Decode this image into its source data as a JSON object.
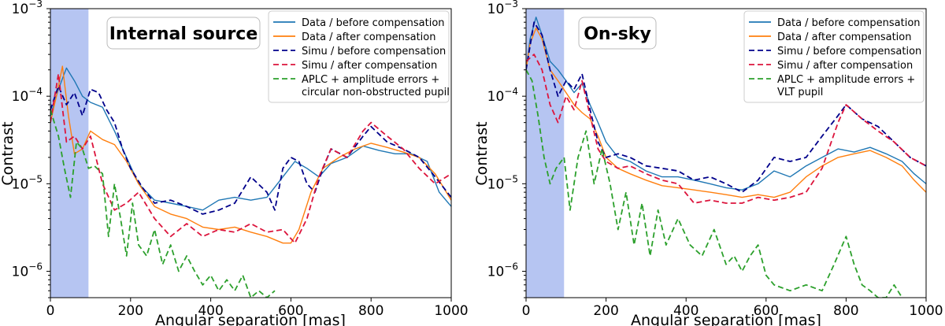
{
  "chart_data": [
    {
      "type": "line",
      "title": "Internal source",
      "xlabel": "Angular separation [mas]",
      "ylabel": "Contrast",
      "xlim": [
        0,
        1000
      ],
      "ylim": [
        5e-07,
        0.001
      ],
      "yscale": "log",
      "xticks": [
        "0",
        "200",
        "400",
        "600",
        "800",
        "1000"
      ],
      "yticks": [
        "10^-6",
        "10^-5",
        "10^-4",
        "10^-3"
      ],
      "shaded_region": [
        0,
        95
      ],
      "legend_position": "top-right",
      "series": [
        {
          "name": "Data / before compensation",
          "color": "#1f77b4",
          "dash": "solid",
          "x": [
            0,
            20,
            40,
            60,
            80,
            100,
            130,
            160,
            190,
            220,
            260,
            300,
            340,
            380,
            420,
            460,
            500,
            540,
            580,
            610,
            640,
            670,
            700,
            740,
            780,
            820,
            860,
            900,
            940,
            970,
            1000
          ],
          "y": [
            6e-05,
            0.00012,
            0.00021,
            0.00015,
            0.0001,
            8.5e-05,
            7.5e-05,
            4e-05,
            2e-05,
            1e-05,
            6.5e-06,
            6e-06,
            5.5e-06,
            5e-06,
            6.5e-06,
            7e-06,
            6.5e-06,
            7e-06,
            1.2e-05,
            1.8e-05,
            1.5e-05,
            1.2e-05,
            1.7e-05,
            2e-05,
            2.7e-05,
            2.4e-05,
            2.2e-05,
            2.2e-05,
            1.8e-05,
            8e-06,
            5.5e-06
          ]
        },
        {
          "name": "Data / after compensation",
          "color": "#ff7f0e",
          "dash": "solid",
          "x": [
            0,
            15,
            30,
            45,
            60,
            80,
            100,
            130,
            160,
            190,
            220,
            260,
            300,
            340,
            380,
            420,
            460,
            500,
            540,
            580,
            600,
            620,
            650,
            680,
            720,
            760,
            800,
            840,
            880,
            920,
            960,
            1000
          ],
          "y": [
            5e-05,
            0.0001,
            0.00022,
            6e-05,
            2.2e-05,
            2.5e-05,
            4e-05,
            3.2e-05,
            2.8e-05,
            1.8e-05,
            1e-05,
            5.5e-06,
            4.5e-06,
            4e-06,
            3.2e-06,
            3e-06,
            3.2e-06,
            2.8e-06,
            2.5e-06,
            2.1e-06,
            2.1e-06,
            3e-06,
            8e-06,
            1.5e-05,
            2e-05,
            2.5e-05,
            2.9e-05,
            2.6e-05,
            2.3e-05,
            2e-05,
            1.3e-05,
            6.5e-06
          ]
        },
        {
          "name": "Simu / before compensation",
          "color": "#00008b",
          "dash": "dashed",
          "x": [
            0,
            20,
            40,
            60,
            80,
            100,
            120,
            140,
            160,
            180,
            200,
            230,
            260,
            300,
            340,
            380,
            420,
            460,
            500,
            540,
            560,
            580,
            600,
            620,
            640,
            660,
            680,
            700,
            740,
            780,
            800,
            840,
            880,
            920,
            960,
            1000
          ],
          "y": [
            7e-05,
            0.00013,
            8e-05,
            0.00011,
            6e-05,
            0.00012,
            0.00011,
            7e-05,
            5e-05,
            2.5e-05,
            1.5e-05,
            9e-06,
            6e-06,
            6.5e-06,
            5.5e-06,
            4.5e-06,
            5e-06,
            6e-06,
            1.2e-05,
            8e-06,
            5e-06,
            1.5e-05,
            2e-05,
            1.8e-05,
            1e-05,
            8e-06,
            1.5e-05,
            2.5e-05,
            2e-05,
            3.5e-05,
            4.5e-05,
            3e-05,
            2.5e-05,
            2e-05,
            1.2e-05,
            7e-06
          ]
        },
        {
          "name": "Simu / after compensation",
          "color": "#dc143c",
          "dash": "dashed",
          "x": [
            0,
            20,
            40,
            60,
            80,
            100,
            130,
            160,
            190,
            220,
            260,
            300,
            340,
            380,
            420,
            460,
            500,
            540,
            580,
            610,
            640,
            670,
            700,
            740,
            780,
            800,
            840,
            880,
            920,
            960,
            1000
          ],
          "y": [
            5e-05,
            0.00018,
            3e-05,
            3.5e-05,
            2.5e-05,
            3.5e-05,
            1e-05,
            5e-06,
            6e-06,
            8e-06,
            4e-06,
            2.5e-06,
            3.5e-06,
            2.5e-06,
            3e-06,
            2.8e-06,
            3.5e-06,
            2.8e-06,
            3e-06,
            2.1e-06,
            4e-06,
            1.2e-05,
            2.5e-05,
            2e-05,
            4e-05,
            5e-05,
            3.5e-05,
            2.5e-05,
            1.5e-05,
            1e-05,
            1.3e-05
          ]
        },
        {
          "name": "APLC + amplitude errors + circular non-obstructed pupil",
          "color": "#2ca02c",
          "dash": "dashed",
          "x": [
            0,
            20,
            35,
            50,
            65,
            80,
            95,
            110,
            130,
            145,
            160,
            175,
            190,
            205,
            220,
            240,
            260,
            280,
            300,
            320,
            340,
            360,
            380,
            400,
            420,
            440,
            460,
            480,
            500,
            520,
            540,
            560
          ],
          "y": [
            7e-05,
            3.5e-05,
            1.5e-05,
            7e-06,
            3e-05,
            2.5e-05,
            1.5e-05,
            1.6e-05,
            1.3e-05,
            2.5e-06,
            1e-05,
            4e-06,
            1.5e-06,
            6e-06,
            2e-06,
            1.5e-06,
            3e-06,
            1.2e-06,
            2e-06,
            1e-06,
            1.5e-06,
            1e-06,
            7e-07,
            9e-07,
            6e-07,
            8e-07,
            6e-07,
            9e-07,
            5e-07,
            6e-07,
            5e-07,
            6e-07
          ]
        }
      ]
    },
    {
      "type": "line",
      "title": "On-sky",
      "xlabel": "Angular separation [mas]",
      "ylabel": "Contrast",
      "xlim": [
        0,
        1000
      ],
      "ylim": [
        5e-07,
        0.001
      ],
      "yscale": "log",
      "xticks": [
        "0",
        "200",
        "400",
        "600",
        "800",
        "1000"
      ],
      "yticks": [
        "10^-6",
        "10^-5",
        "10^-4",
        "10^-3"
      ],
      "shaded_region": [
        0,
        95
      ],
      "legend_position": "top-right",
      "series": [
        {
          "name": "Data / before compensation",
          "color": "#1f77b4",
          "dash": "solid",
          "x": [
            0,
            10,
            25,
            40,
            60,
            80,
            100,
            120,
            140,
            160,
            180,
            200,
            230,
            260,
            300,
            340,
            380,
            420,
            460,
            500,
            540,
            580,
            620,
            660,
            700,
            740,
            780,
            820,
            860,
            900,
            940,
            970,
            1000
          ],
          "y": [
            0.0002,
            0.00045,
            0.0008,
            0.0005,
            0.00025,
            0.0002,
            0.00015,
            0.00011,
            0.00014,
            8e-05,
            5e-05,
            3e-05,
            2e-05,
            1.8e-05,
            1.4e-05,
            1.2e-05,
            1.2e-05,
            1.1e-05,
            1e-05,
            9e-06,
            8.5e-06,
            1e-05,
            1.4e-05,
            1.2e-05,
            1.6e-05,
            2e-05,
            2.5e-05,
            2.3e-05,
            2.6e-05,
            2.2e-05,
            1.8e-05,
            1.3e-05,
            1e-05
          ]
        },
        {
          "name": "Data / after compensation",
          "color": "#ff7f0e",
          "dash": "solid",
          "x": [
            0,
            10,
            25,
            40,
            60,
            80,
            100,
            120,
            140,
            160,
            180,
            200,
            230,
            260,
            300,
            340,
            380,
            420,
            460,
            500,
            540,
            580,
            620,
            660,
            700,
            740,
            780,
            820,
            860,
            900,
            940,
            970,
            1000
          ],
          "y": [
            0.0002,
            0.0004,
            0.0006,
            0.00045,
            0.0002,
            0.00015,
            0.00011,
            8e-05,
            6.5e-05,
            5.5e-05,
            3.5e-05,
            2e-05,
            1.5e-05,
            1.3e-05,
            1.1e-05,
            9.5e-06,
            9e-06,
            8.5e-06,
            8e-06,
            7.5e-06,
            7e-06,
            7.5e-06,
            7e-06,
            8e-06,
            1.2e-05,
            1.6e-05,
            2e-05,
            2.2e-05,
            2.4e-05,
            2e-05,
            1.6e-05,
            1.1e-05,
            8e-06
          ]
        },
        {
          "name": "Simu / before compensation",
          "color": "#00008b",
          "dash": "dashed",
          "x": [
            0,
            20,
            40,
            60,
            80,
            100,
            120,
            140,
            160,
            180,
            200,
            230,
            260,
            300,
            340,
            380,
            420,
            460,
            500,
            540,
            580,
            620,
            660,
            700,
            740,
            780,
            800,
            840,
            880,
            920,
            960,
            1000
          ],
          "y": [
            0.0002,
            0.0007,
            0.0005,
            0.0002,
            0.0001,
            0.00015,
            0.00012,
            0.00018,
            7e-05,
            3e-05,
            2e-05,
            2.2e-05,
            2e-05,
            1.6e-05,
            1.5e-05,
            1.4e-05,
            1.1e-05,
            1.2e-05,
            1e-05,
            8e-06,
            1.1e-05,
            2e-05,
            1.8e-05,
            2e-05,
            3.5e-05,
            6e-05,
            8e-05,
            5.5e-05,
            4.5e-05,
            3e-05,
            2e-05,
            1.6e-05
          ]
        },
        {
          "name": "Simu / after compensation",
          "color": "#dc143c",
          "dash": "dashed",
          "x": [
            0,
            20,
            40,
            60,
            80,
            100,
            120,
            140,
            160,
            180,
            200,
            230,
            260,
            300,
            340,
            380,
            420,
            460,
            500,
            540,
            580,
            620,
            660,
            700,
            740,
            780,
            800,
            840,
            880,
            920,
            960,
            1000
          ],
          "y": [
            0.00025,
            0.0003,
            0.0002,
            8e-05,
            5e-05,
            0.0001,
            7e-05,
            0.00015,
            6e-05,
            2.5e-05,
            1.8e-05,
            1.5e-05,
            1.6e-05,
            1.3e-05,
            1.1e-05,
            1e-05,
            6e-06,
            6.5e-06,
            6e-06,
            6e-06,
            7e-06,
            6.5e-06,
            7e-06,
            8e-06,
            1.5e-05,
            5e-05,
            8e-05,
            5.5e-05,
            4e-05,
            3e-05,
            2e-05,
            1.6e-05
          ]
        },
        {
          "name": "APLC + amplitude errors + VLT pupil",
          "color": "#2ca02c",
          "dash": "dashed",
          "x": [
            0,
            15,
            30,
            45,
            60,
            75,
            95,
            110,
            130,
            150,
            170,
            190,
            210,
            230,
            250,
            270,
            290,
            310,
            330,
            350,
            380,
            410,
            440,
            470,
            500,
            520,
            540,
            560,
            580,
            600,
            620,
            660,
            700,
            740,
            770,
            800,
            820,
            840,
            860,
            880,
            900,
            920,
            940
          ],
          "y": [
            0.0002,
            0.00015,
            6e-05,
            2e-05,
            1e-05,
            1.5e-05,
            2e-05,
            5e-06,
            2e-05,
            4e-05,
            1e-05,
            2.5e-05,
            1e-05,
            3e-06,
            8e-06,
            2e-06,
            6e-06,
            1.5e-06,
            5e-06,
            2e-06,
            4e-06,
            2e-06,
            1.5e-06,
            3e-06,
            1.2e-06,
            1.5e-06,
            1e-06,
            1.5e-06,
            2e-06,
            9e-07,
            7e-07,
            6e-07,
            7e-07,
            6e-07,
            1.2e-06,
            2.5e-06,
            1.2e-06,
            7e-07,
            6e-07,
            5e-07,
            5e-07,
            7e-07,
            5e-07
          ]
        }
      ]
    }
  ]
}
